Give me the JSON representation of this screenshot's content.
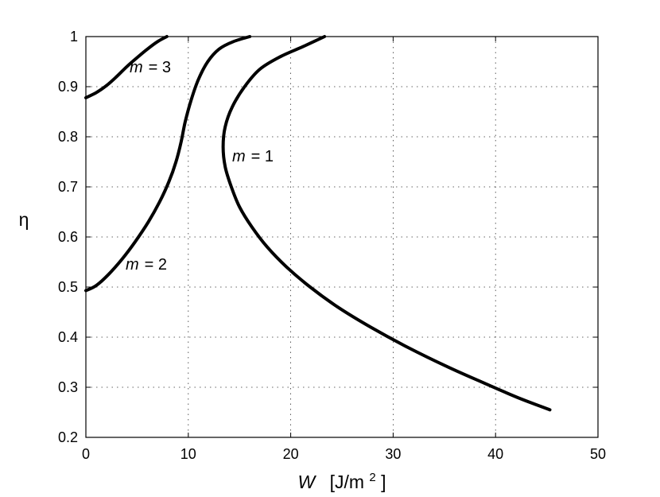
{
  "chart_data": {
    "type": "line",
    "title": "",
    "xlabel": {
      "symbol": "W",
      "unit_prefix": "[J/m",
      "unit_exponent": "2",
      "unit_suffix": "]"
    },
    "ylabel": "η",
    "xlim": [
      0,
      50
    ],
    "ylim": [
      0.2,
      1.0
    ],
    "xticks": [
      "0",
      "10",
      "20",
      "30",
      "40",
      "50"
    ],
    "yticks": [
      "0.2",
      "0.3",
      "0.4",
      "0.5",
      "0.6",
      "0.7",
      "0.8",
      "0.9",
      "1"
    ],
    "grid": true,
    "line_color": "#000000",
    "series": [
      {
        "annotation": {
          "symbol": "m",
          "text": "= 1"
        },
        "points": [
          [
            23.3,
            1.0
          ],
          [
            21.2,
            0.98
          ],
          [
            19.0,
            0.96
          ],
          [
            17.0,
            0.935
          ],
          [
            15.5,
            0.9
          ],
          [
            14.3,
            0.86
          ],
          [
            13.6,
            0.82
          ],
          [
            13.4,
            0.78
          ],
          [
            13.6,
            0.74
          ],
          [
            14.2,
            0.7
          ],
          [
            15.0,
            0.66
          ],
          [
            16.2,
            0.62
          ],
          [
            17.7,
            0.58
          ],
          [
            19.6,
            0.54
          ],
          [
            21.9,
            0.5
          ],
          [
            24.6,
            0.46
          ],
          [
            27.8,
            0.42
          ],
          [
            31.4,
            0.38
          ],
          [
            35.4,
            0.34
          ],
          [
            38.7,
            0.31
          ],
          [
            42.1,
            0.28
          ],
          [
            45.3,
            0.255
          ]
        ]
      },
      {
        "annotation": {
          "symbol": "m",
          "text": "= 2"
        },
        "points": [
          [
            16.0,
            1.0
          ],
          [
            14.4,
            0.99
          ],
          [
            13.0,
            0.975
          ],
          [
            11.9,
            0.95
          ],
          [
            11.0,
            0.915
          ],
          [
            10.3,
            0.875
          ],
          [
            9.7,
            0.83
          ],
          [
            9.3,
            0.79
          ],
          [
            8.8,
            0.75
          ],
          [
            8.1,
            0.71
          ],
          [
            7.2,
            0.67
          ],
          [
            6.1,
            0.63
          ],
          [
            4.8,
            0.59
          ],
          [
            3.5,
            0.555
          ],
          [
            2.2,
            0.525
          ],
          [
            1.0,
            0.503
          ],
          [
            0.0,
            0.493
          ]
        ]
      },
      {
        "annotation": {
          "symbol": "m",
          "text": "= 3"
        },
        "points": [
          [
            7.9,
            1.0
          ],
          [
            7.0,
            0.99
          ],
          [
            6.0,
            0.975
          ],
          [
            5.0,
            0.958
          ],
          [
            4.0,
            0.94
          ],
          [
            3.0,
            0.92
          ],
          [
            2.0,
            0.902
          ],
          [
            1.0,
            0.888
          ],
          [
            0.0,
            0.878
          ]
        ]
      }
    ]
  }
}
